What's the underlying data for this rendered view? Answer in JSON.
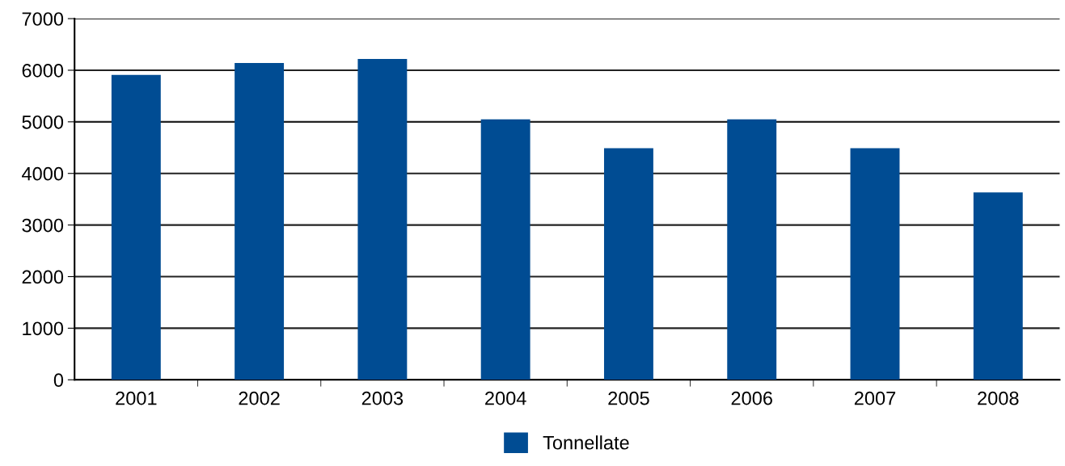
{
  "chart_data": {
    "type": "bar",
    "categories": [
      "2001",
      "2002",
      "2003",
      "2004",
      "2005",
      "2006",
      "2007",
      "2008"
    ],
    "series": [
      {
        "name": "Tonnellate",
        "color": "#004c93",
        "values": [
          5910,
          6140,
          6220,
          5050,
          4490,
          5050,
          4490,
          3630
        ]
      }
    ],
    "ylim": [
      0,
      7000
    ],
    "yticks": [
      0,
      1000,
      2000,
      3000,
      4000,
      5000,
      6000,
      7000
    ],
    "grid": "y",
    "legend": "bottom"
  }
}
